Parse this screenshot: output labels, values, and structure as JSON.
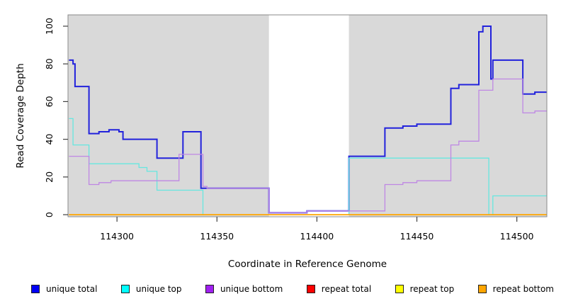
{
  "figure": {
    "background": "#FFFFFF"
  },
  "chart_data": {
    "type": "line",
    "subtype": "step-coverage",
    "title": "",
    "xlabel": "Coordinate in Reference Genome",
    "ylabel": "Read Coverage Depth",
    "xlim": [
      114275.5,
      114515
    ],
    "ylim": [
      -1.1,
      106
    ],
    "x_ticks": [
      114300,
      114350,
      114400,
      114450,
      114500
    ],
    "y_ticks": [
      0,
      20,
      40,
      60,
      80,
      100
    ],
    "grid": false,
    "legend_position": "bottom",
    "plot_bg_color": "#D9D9D9",
    "axis_color": "#404040",
    "box_color": "#8A8A8A",
    "gap_region": {
      "start": 114376,
      "end": 114416,
      "color": "#FFFFFF"
    },
    "series": [
      {
        "name": "unique total",
        "line_color": "#2222DC",
        "legend_color": "#0000F5",
        "line_width": 2,
        "points": [
          [
            114276,
            82
          ],
          [
            114278,
            80
          ],
          [
            114279,
            68
          ],
          [
            114286,
            43
          ],
          [
            114291,
            44
          ],
          [
            114296,
            45
          ],
          [
            114301,
            44
          ],
          [
            114303,
            40
          ],
          [
            114320,
            30
          ],
          [
            114333,
            44
          ],
          [
            114342,
            14
          ],
          [
            114376,
            1
          ],
          [
            114395,
            2
          ],
          [
            114416,
            31
          ],
          [
            114434,
            46
          ],
          [
            114443,
            47
          ],
          [
            114450,
            48
          ],
          [
            114467,
            67
          ],
          [
            114471,
            69
          ],
          [
            114481,
            97
          ],
          [
            114483,
            100
          ],
          [
            114487,
            72
          ],
          [
            114488,
            82
          ],
          [
            114503,
            64
          ],
          [
            114509,
            65
          ],
          [
            114515,
            65
          ]
        ]
      },
      {
        "name": "unique top",
        "line_color": "#66E7E0",
        "legend_color": "#00FFFF",
        "line_width": 1.3,
        "points": [
          [
            114276,
            51
          ],
          [
            114278,
            37
          ],
          [
            114286,
            27
          ],
          [
            114311,
            25
          ],
          [
            114315,
            23
          ],
          [
            114320,
            13
          ],
          [
            114343,
            0
          ],
          [
            114416,
            30
          ],
          [
            114486,
            0
          ],
          [
            114488,
            10
          ],
          [
            114515,
            10
          ]
        ]
      },
      {
        "name": "unique bottom",
        "line_color": "#BF87E4",
        "legend_color": "#A020F0",
        "line_width": 1.3,
        "points": [
          [
            114276,
            31
          ],
          [
            114286,
            16
          ],
          [
            114291,
            17
          ],
          [
            114297,
            18
          ],
          [
            114331,
            32
          ],
          [
            114343,
            15
          ],
          [
            114345,
            14
          ],
          [
            114376,
            1
          ],
          [
            114395,
            2
          ],
          [
            114434,
            16
          ],
          [
            114443,
            17
          ],
          [
            114450,
            18
          ],
          [
            114467,
            37
          ],
          [
            114471,
            39
          ],
          [
            114481,
            66
          ],
          [
            114488,
            72
          ],
          [
            114503,
            54
          ],
          [
            114509,
            55
          ],
          [
            114515,
            55
          ]
        ]
      },
      {
        "name": "repeat total",
        "line_color": "#FF0000",
        "legend_color": "#FF0000",
        "line_width": 1.3,
        "points": [
          [
            114276,
            0
          ],
          [
            114515,
            0
          ]
        ]
      },
      {
        "name": "repeat top",
        "line_color": "#FFFF00",
        "legend_color": "#FFFF00",
        "line_width": 1.3,
        "points": [
          [
            114276,
            0
          ],
          [
            114515,
            0
          ]
        ]
      },
      {
        "name": "repeat bottom",
        "line_color": "#FFA500",
        "legend_color": "#FFA500",
        "line_width": 1.8,
        "points": [
          [
            114276,
            0
          ],
          [
            114515,
            0
          ]
        ]
      }
    ]
  }
}
